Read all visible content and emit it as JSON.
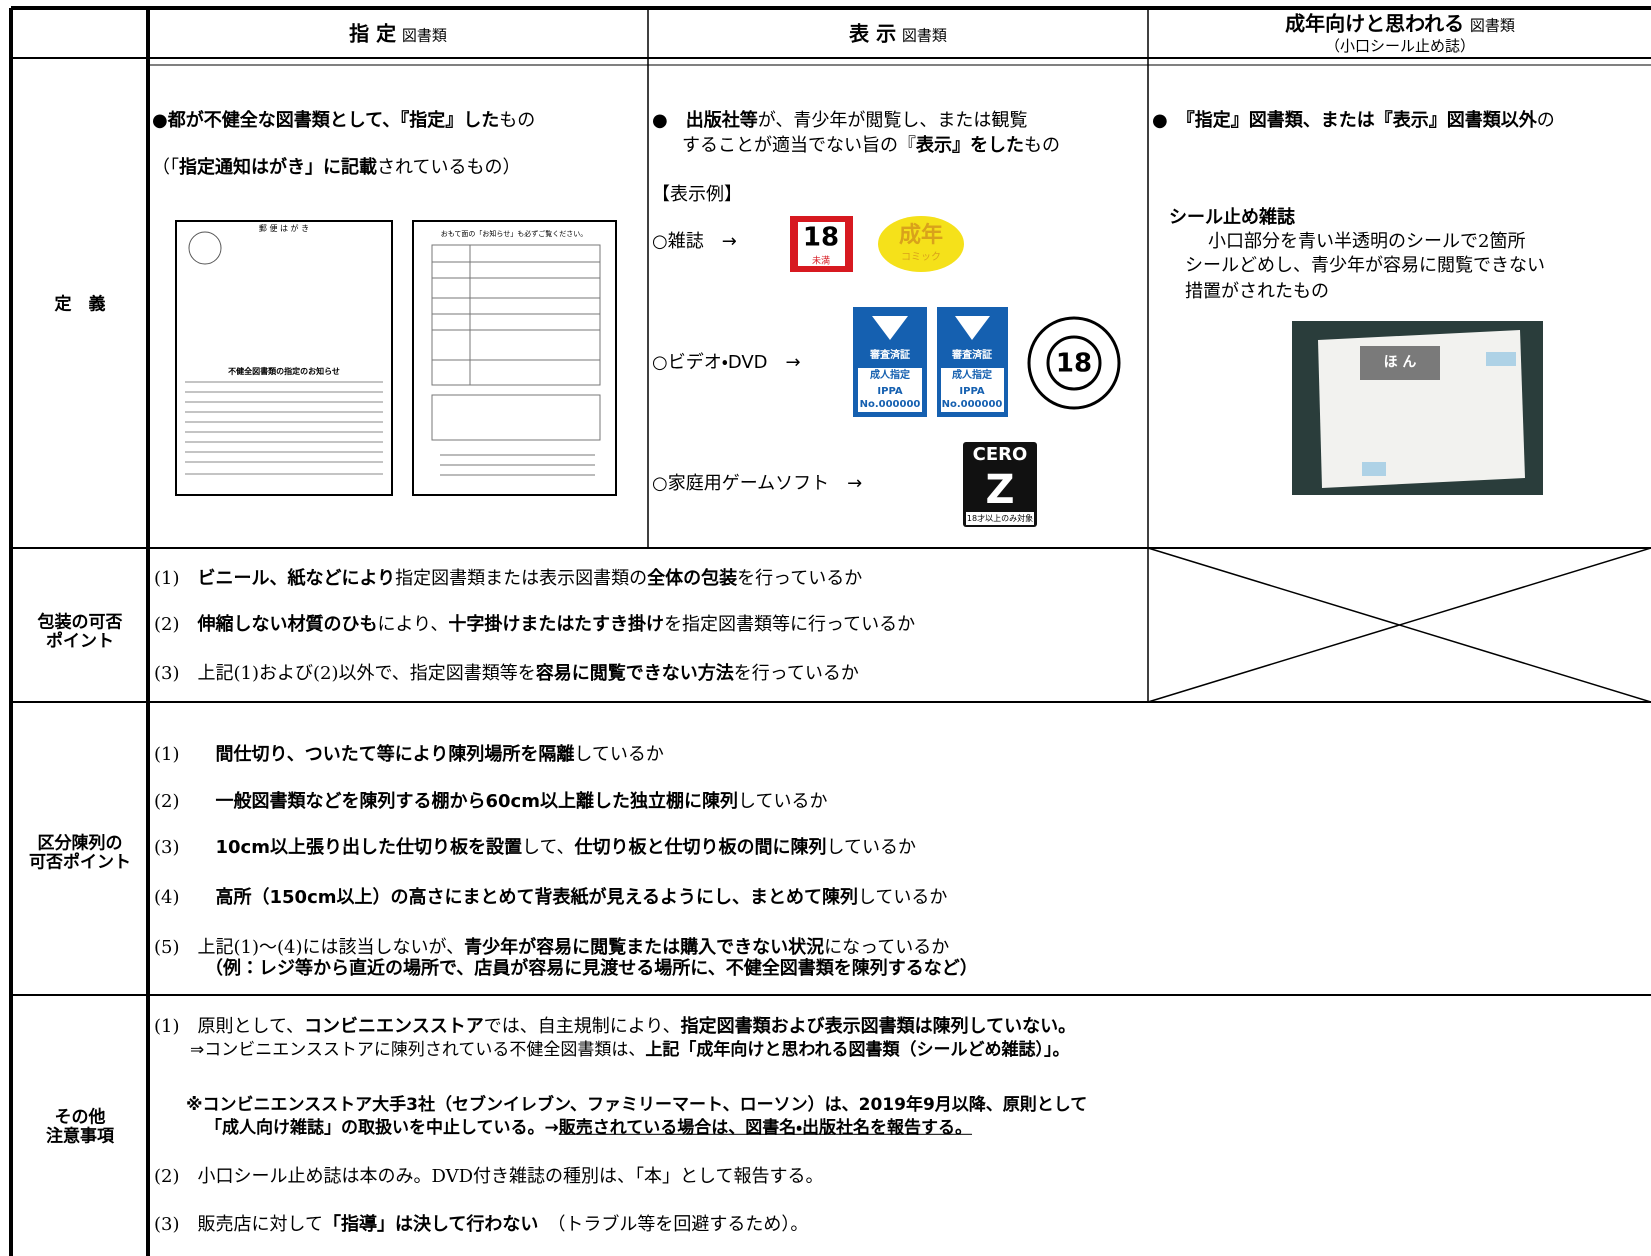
{
  "header": {
    "designated": [
      "指 定",
      "図書類"
    ],
    "displayed": [
      "表 示",
      "図書類"
    ],
    "adult": [
      "成年向けと思われる",
      "図書類",
      "（小口シール止め誌）"
    ]
  },
  "definition": {
    "label": "定　義",
    "designated": {
      "line1": [
        "●都が不健全な図書類として、『指定』した",
        "もの"
      ],
      "line2": [
        "（「",
        "指定通知はがき」に記載",
        "されているもの）"
      ],
      "postcard": {
        "front": "郵 便 は が き",
        "notice": "不健全図書類の指定のお知らせ",
        "back": "おもて面の「お知らせ」も必ずご覧ください。"
      }
    },
    "displayed": {
      "line1": [
        "●　",
        "出版社等",
        "が、青少年が閲覧し、または観覧"
      ],
      "line2": [
        "することが適当でない旨の『",
        "表示』をした",
        "もの"
      ],
      "examples_title": "【表示例】",
      "magazine": "○雑誌　→",
      "video": "○ビデオ・DVD　→",
      "game": "○家庭用ゲームソフト　→",
      "marks": {
        "eighteen": "18",
        "minors": "未満",
        "adult": "成年",
        "comic": "コミック",
        "screened": "審査済証",
        "adult_rating": "成人指定",
        "ippa": "IPPA",
        "number": "No.000000",
        "cero": "CERO",
        "z": "Z",
        "cero_note": "18才以上のみ対象"
      }
    },
    "adult": {
      "line1": [
        "●　『指定』図書類、または『表示』図書類以外",
        "の"
      ],
      "heading": "シール止め雑誌",
      "desc": [
        "小口部分を青い半透明のシールで2箇所",
        "シールどめし、青少年が容易に閲覧できない",
        "措置がされたもの"
      ],
      "photo_label": "ほ ん"
    }
  },
  "packaging": {
    "label": [
      "包装の可否",
      "ポイント"
    ],
    "items": [
      [
        "(1)",
        "ビニール、紙などにより",
        "指定図書類または表示図書類の",
        "全体の包装",
        "を行っているか"
      ],
      [
        "(2)",
        "伸縮しない材質のひも",
        "により、",
        "十字掛けまたはたすき掛け",
        "を指定図書類等に行っているか"
      ],
      [
        "(3)",
        "上記(1)および(2)以外で、指定図書類等を",
        "容易に閲覧できない方法",
        "を行っているか"
      ]
    ]
  },
  "display": {
    "label": [
      "区分陳列の",
      "可否ポイント"
    ],
    "items": [
      [
        "(1)",
        "間仕切り、ついたて等により陳列場所を隔離",
        "しているか"
      ],
      [
        "(2)",
        "一般図書類などを陳列する棚から60cm以上離した独立棚に陳列",
        "しているか"
      ],
      [
        "(3)",
        "10cm以上張り出した仕切り板を設置",
        "して、",
        "仕切り板と仕切り板の間に陳列",
        "しているか"
      ],
      [
        "(4)",
        "高所（150cm以上）の高さにまとめて背表紙が見えるようにし、まとめて陳列",
        "しているか"
      ],
      [
        "(5)",
        "上記(1)～(4)には該当しないが、",
        "青少年が容易に閲覧または購入できない状況",
        "になっているか",
        "（例：レジ等から直近の場所で、店員が容易に見渡せる場所に、不健全図書類を陳列するなど）"
      ]
    ]
  },
  "other": {
    "label": [
      "その他",
      "注意事項"
    ],
    "items": [
      [
        "(1)",
        "原則として、",
        "コンビニエンスストア",
        "では、自主規制により、",
        "指定図書類および表示図書類は陳列していない。",
        "⇒コンビニエンスストアに陳列されている不健全図書類は、",
        "上記「成年向けと思われる図書類（シールどめ雑誌）」。"
      ],
      [
        "※コンビニエンスストア大手3社（セブンイレブン、ファミリーマート、ローソン）は、2019年9月以降、原則として",
        "「成人向け雑誌」の取扱いを中止している。→",
        "販売されている場合は、図書名・出版社名を報告する。"
      ],
      [
        "(2)",
        "小口シール止め誌は本のみ。DVD付き雑誌の種別は、「本」として報告する。"
      ],
      [
        "(3)",
        "販売店に対して",
        "「指導」は決して行わない",
        "（トラブル等を回避するため）。"
      ]
    ]
  }
}
